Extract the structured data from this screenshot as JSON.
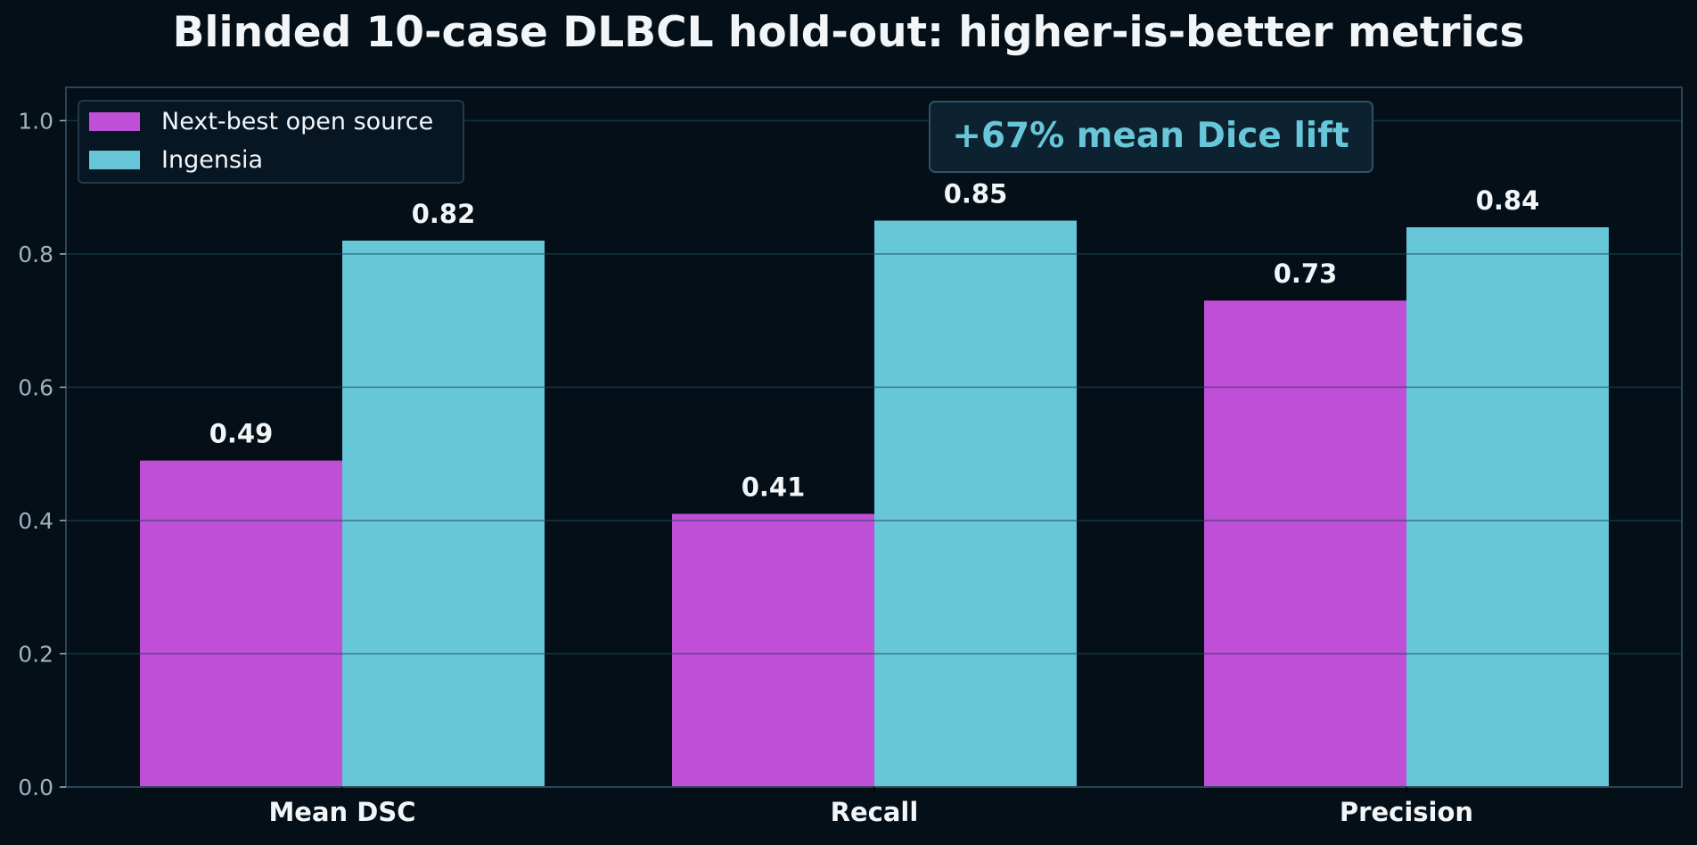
{
  "chart_data": {
    "type": "bar",
    "title": "Blinded 10-case DLBCL hold-out: higher-is-better metrics",
    "categories": [
      "Mean DSC",
      "Recall",
      "Precision"
    ],
    "series": [
      {
        "name": "Next-best open source",
        "values": [
          0.49,
          0.41,
          0.73
        ],
        "labels": [
          "0.49",
          "0.41",
          "0.73"
        ],
        "color": "#c04fd8"
      },
      {
        "name": "Ingensia",
        "values": [
          0.82,
          0.85,
          0.84
        ],
        "labels": [
          "0.82",
          "0.85",
          "0.84"
        ],
        "color": "#67c6d8"
      }
    ],
    "ylim": [
      0,
      1.05
    ],
    "yticks": [
      0.0,
      0.2,
      0.4,
      0.6,
      0.8,
      1.0
    ],
    "ytick_labels": [
      "0.0",
      "0.2",
      "0.4",
      "0.6",
      "0.8",
      "1.0"
    ],
    "xlabel": "",
    "ylabel": "",
    "grid": true,
    "legend_position": "top-left",
    "annotation": "+67% mean Dice lift",
    "colors": {
      "background": "#040f18",
      "text": "#f2f6f8",
      "tick": "#9fb3bd",
      "grid": "#1a2d39",
      "spine": "#2c4556",
      "annotation": "#67c6d8"
    }
  }
}
